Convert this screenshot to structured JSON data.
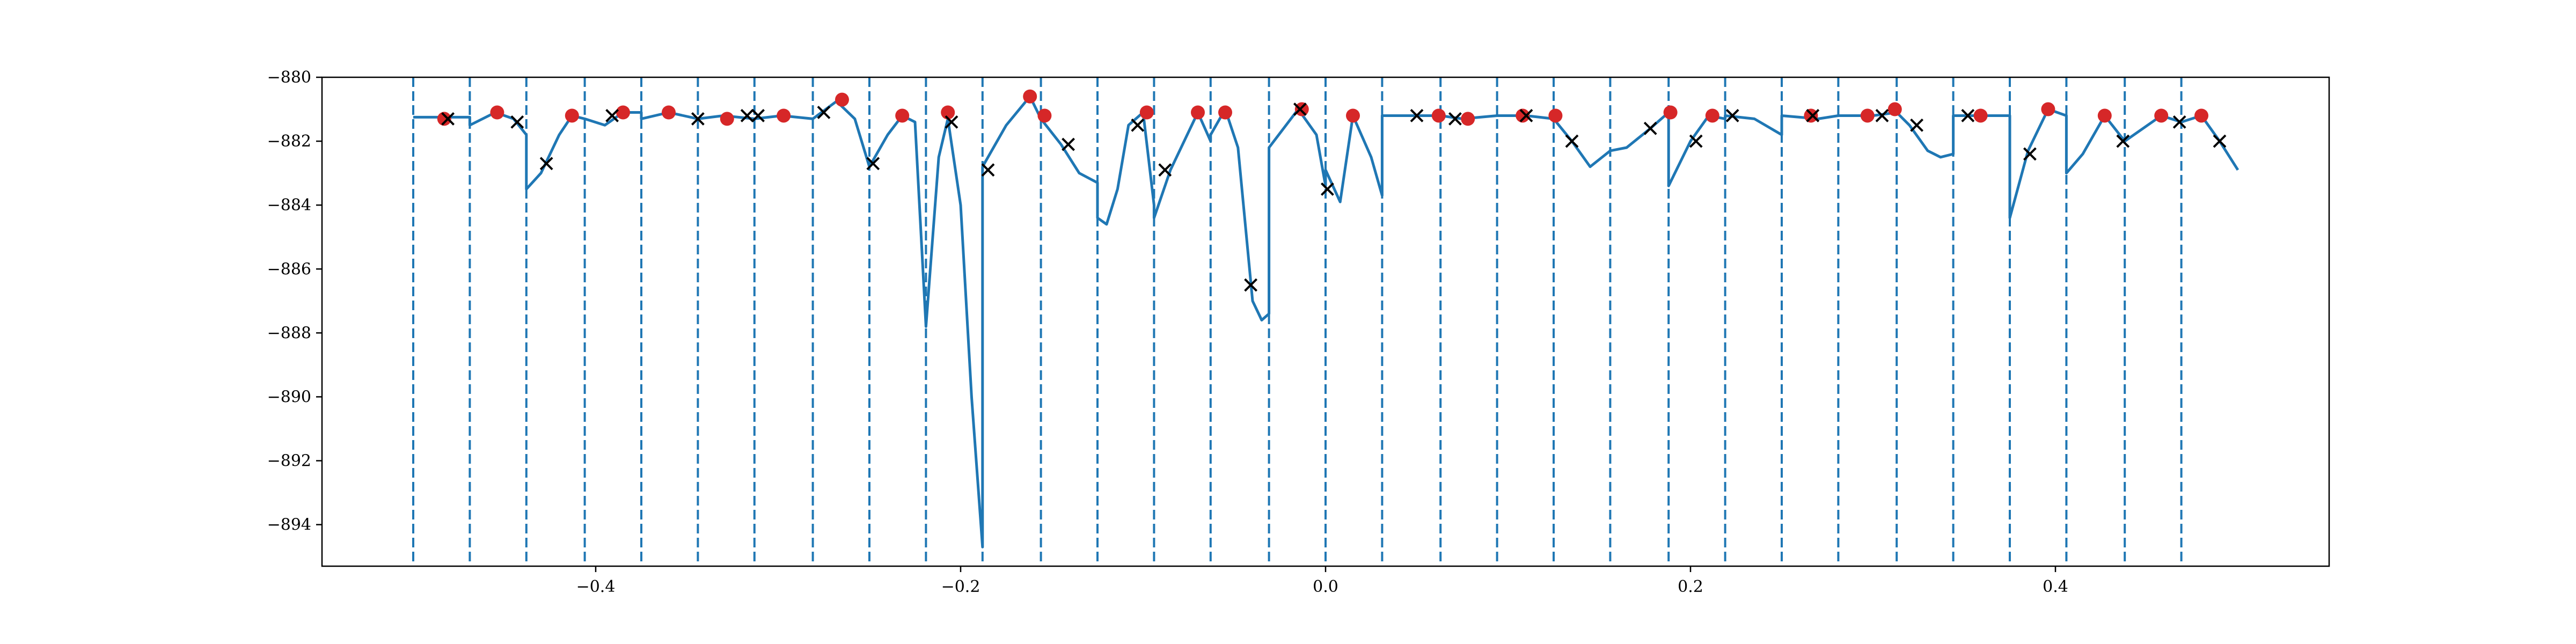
{
  "chart_data": {
    "type": "line",
    "title": "",
    "xlabel": "",
    "ylabel": "",
    "xlim": [
      -0.55,
      0.55
    ],
    "ylim": [
      -895.3,
      -880.0
    ],
    "x_ticks": [
      -0.4,
      -0.2,
      0.0,
      0.2,
      0.4
    ],
    "x_tick_labels": [
      "−0.4",
      "−0.2",
      "0.0",
      "0.2",
      "0.4"
    ],
    "y_ticks": [
      -880,
      -882,
      -884,
      -886,
      -888,
      -890,
      -892,
      -894
    ],
    "y_tick_labels": [
      "−880",
      "−882",
      "−884",
      "−886",
      "−888",
      "−890",
      "−892",
      "−894"
    ],
    "grid": false,
    "legend": "none",
    "colors": {
      "line": "#1f77b4",
      "vline": "#1f77b4",
      "dot": "#d62728",
      "cross": "#000000"
    },
    "segment_boundaries": [
      -0.5,
      -0.469,
      -0.438,
      -0.406,
      -0.375,
      -0.344,
      -0.313,
      -0.281,
      -0.25,
      -0.219,
      -0.188,
      -0.156,
      -0.125,
      -0.094,
      -0.063,
      -0.031,
      0.0,
      0.031,
      0.063,
      0.094,
      0.125,
      0.156,
      0.188,
      0.219,
      0.25,
      0.281,
      0.313,
      0.344,
      0.375,
      0.406,
      0.438,
      0.469
    ],
    "series": [
      {
        "values": [
          [
            -0.5,
            -881.25
          ],
          [
            -0.48,
            -881.25
          ],
          [
            -0.469,
            -881.25
          ],
          [
            -0.469,
            -881.5
          ],
          [
            -0.455,
            -881.1
          ],
          [
            -0.445,
            -881.3
          ],
          [
            -0.438,
            -881.8
          ],
          [
            -0.438,
            -883.5
          ],
          [
            -0.43,
            -883.0
          ],
          [
            -0.42,
            -881.8
          ],
          [
            -0.413,
            -881.2
          ],
          [
            -0.406,
            -881.3
          ],
          [
            -0.406,
            -881.3
          ],
          [
            -0.395,
            -881.5
          ],
          [
            -0.385,
            -881.1
          ],
          [
            -0.375,
            -881.1
          ],
          [
            -0.375,
            -881.3
          ],
          [
            -0.36,
            -881.1
          ],
          [
            -0.344,
            -881.3
          ],
          [
            -0.344,
            -881.3
          ],
          [
            -0.33,
            -881.2
          ],
          [
            -0.313,
            -881.3
          ],
          [
            -0.313,
            -881.3
          ],
          [
            -0.298,
            -881.2
          ],
          [
            -0.281,
            -881.3
          ],
          [
            -0.281,
            -881.3
          ],
          [
            -0.268,
            -880.75
          ],
          [
            -0.258,
            -881.3
          ],
          [
            -0.25,
            -882.8
          ],
          [
            -0.25,
            -882.8
          ],
          [
            -0.24,
            -881.8
          ],
          [
            -0.232,
            -881.2
          ],
          [
            -0.225,
            -881.4
          ],
          [
            -0.219,
            -887.8
          ],
          [
            -0.219,
            -887.8
          ],
          [
            -0.212,
            -882.5
          ],
          [
            -0.207,
            -881.3
          ],
          [
            -0.2,
            -884.0
          ],
          [
            -0.194,
            -890.0
          ],
          [
            -0.188,
            -894.7
          ],
          [
            -0.188,
            -882.8
          ],
          [
            -0.175,
            -881.5
          ],
          [
            -0.162,
            -880.6
          ],
          [
            -0.156,
            -881.3
          ],
          [
            -0.156,
            -881.3
          ],
          [
            -0.145,
            -882.1
          ],
          [
            -0.135,
            -883.0
          ],
          [
            -0.125,
            -883.3
          ],
          [
            -0.125,
            -884.4
          ],
          [
            -0.12,
            -884.6
          ],
          [
            -0.114,
            -883.5
          ],
          [
            -0.108,
            -881.5
          ],
          [
            -0.1,
            -881.1
          ],
          [
            -0.094,
            -884.0
          ],
          [
            -0.094,
            -884.4
          ],
          [
            -0.085,
            -882.9
          ],
          [
            -0.07,
            -881.1
          ],
          [
            -0.063,
            -882.0
          ],
          [
            -0.063,
            -881.8
          ],
          [
            -0.055,
            -881.0
          ],
          [
            -0.048,
            -882.2
          ],
          [
            -0.04,
            -887.0
          ],
          [
            -0.035,
            -887.6
          ],
          [
            -0.031,
            -887.4
          ],
          [
            -0.031,
            -882.2
          ],
          [
            -0.015,
            -881.0
          ],
          [
            -0.005,
            -881.8
          ],
          [
            0.0,
            -883.4
          ],
          [
            0.0,
            -882.9
          ],
          [
            0.008,
            -883.9
          ],
          [
            0.015,
            -881.2
          ],
          [
            0.025,
            -882.5
          ],
          [
            0.031,
            -883.7
          ],
          [
            0.031,
            -881.2
          ],
          [
            0.05,
            -881.2
          ],
          [
            0.063,
            -881.2
          ],
          [
            0.063,
            -881.2
          ],
          [
            0.075,
            -881.3
          ],
          [
            0.094,
            -881.2
          ],
          [
            0.094,
            -881.2
          ],
          [
            0.11,
            -881.2
          ],
          [
            0.125,
            -881.3
          ],
          [
            0.125,
            -881.3
          ],
          [
            0.135,
            -882.0
          ],
          [
            0.145,
            -882.8
          ],
          [
            0.156,
            -882.3
          ],
          [
            0.156,
            -882.3
          ],
          [
            0.165,
            -882.2
          ],
          [
            0.178,
            -881.6
          ],
          [
            0.188,
            -881.1
          ],
          [
            0.188,
            -883.4
          ],
          [
            0.2,
            -882.0
          ],
          [
            0.21,
            -881.2
          ],
          [
            0.219,
            -881.3
          ],
          [
            0.219,
            -881.2
          ],
          [
            0.235,
            -881.3
          ],
          [
            0.25,
            -881.8
          ],
          [
            0.25,
            -881.2
          ],
          [
            0.27,
            -881.3
          ],
          [
            0.281,
            -881.2
          ],
          [
            0.281,
            -881.2
          ],
          [
            0.3,
            -881.2
          ],
          [
            0.313,
            -881.1
          ],
          [
            0.313,
            -881.1
          ],
          [
            0.32,
            -881.5
          ],
          [
            0.33,
            -882.3
          ],
          [
            0.337,
            -882.5
          ],
          [
            0.344,
            -882.4
          ],
          [
            0.344,
            -881.2
          ],
          [
            0.36,
            -881.2
          ],
          [
            0.375,
            -881.2
          ],
          [
            0.375,
            -884.4
          ],
          [
            0.385,
            -882.3
          ],
          [
            0.396,
            -881.0
          ],
          [
            0.406,
            -881.2
          ],
          [
            0.406,
            -883.0
          ],
          [
            0.415,
            -882.4
          ],
          [
            0.427,
            -881.2
          ],
          [
            0.438,
            -882.0
          ],
          [
            0.438,
            -882.0
          ],
          [
            0.448,
            -881.6
          ],
          [
            0.458,
            -881.2
          ],
          [
            0.469,
            -881.4
          ],
          [
            0.469,
            -881.4
          ],
          [
            0.48,
            -881.2
          ],
          [
            0.49,
            -882.0
          ],
          [
            0.5,
            -882.9
          ]
        ]
      },
      {
        "values": [
          [
            -0.483,
            -881.3
          ],
          [
            -0.454,
            -881.1
          ],
          [
            -0.413,
            -881.2
          ],
          [
            -0.385,
            -881.1
          ],
          [
            -0.36,
            -881.1
          ],
          [
            -0.328,
            -881.3
          ],
          [
            -0.297,
            -881.2
          ],
          [
            -0.265,
            -880.7
          ],
          [
            -0.232,
            -881.2
          ],
          [
            -0.207,
            -881.1
          ],
          [
            -0.162,
            -880.6
          ],
          [
            -0.154,
            -881.2
          ],
          [
            -0.098,
            -881.1
          ],
          [
            -0.07,
            -881.1
          ],
          [
            -0.055,
            -881.1
          ],
          [
            -0.013,
            -881.0
          ],
          [
            0.015,
            -881.2
          ],
          [
            0.062,
            -881.2
          ],
          [
            0.078,
            -881.3
          ],
          [
            0.108,
            -881.2
          ],
          [
            0.126,
            -881.2
          ],
          [
            0.189,
            -881.1
          ],
          [
            0.212,
            -881.2
          ],
          [
            0.266,
            -881.2
          ],
          [
            0.297,
            -881.2
          ],
          [
            0.312,
            -881.0
          ],
          [
            0.359,
            -881.2
          ],
          [
            0.396,
            -881.0
          ],
          [
            0.427,
            -881.2
          ],
          [
            0.458,
            -881.2
          ],
          [
            0.48,
            -881.2
          ]
        ]
      },
      {
        "values": [
          [
            -0.481,
            -881.3
          ],
          [
            -0.443,
            -881.4
          ],
          [
            -0.427,
            -882.7
          ],
          [
            -0.391,
            -881.2
          ],
          [
            -0.344,
            -881.3
          ],
          [
            -0.317,
            -881.2
          ],
          [
            -0.311,
            -881.2
          ],
          [
            -0.275,
            -881.1
          ],
          [
            -0.248,
            -882.7
          ],
          [
            -0.205,
            -881.4
          ],
          [
            -0.185,
            -882.9
          ],
          [
            -0.141,
            -882.1
          ],
          [
            -0.103,
            -881.5
          ],
          [
            -0.088,
            -882.9
          ],
          [
            -0.041,
            -886.5
          ],
          [
            -0.014,
            -881.0
          ],
          [
            0.001,
            -883.5
          ],
          [
            0.05,
            -881.2
          ],
          [
            0.071,
            -881.3
          ],
          [
            0.11,
            -881.2
          ],
          [
            0.135,
            -882.0
          ],
          [
            0.178,
            -881.6
          ],
          [
            0.203,
            -882.0
          ],
          [
            0.223,
            -881.2
          ],
          [
            0.267,
            -881.2
          ],
          [
            0.305,
            -881.2
          ],
          [
            0.324,
            -881.5
          ],
          [
            0.352,
            -881.2
          ],
          [
            0.386,
            -882.4
          ],
          [
            0.437,
            -882.0
          ],
          [
            0.468,
            -881.4
          ],
          [
            0.49,
            -882.0
          ]
        ]
      }
    ]
  }
}
